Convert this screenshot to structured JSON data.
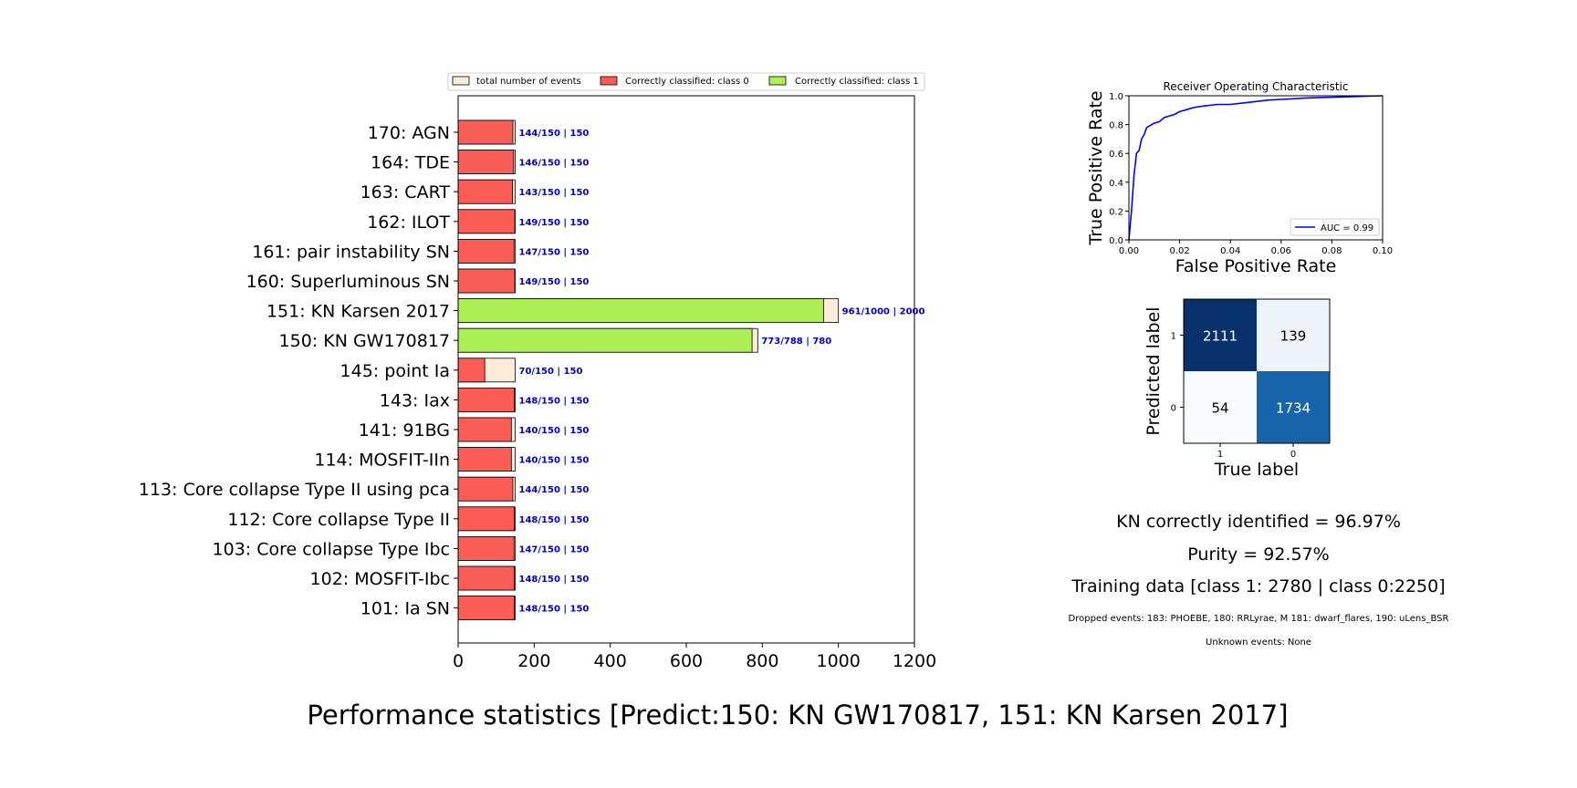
{
  "suptitle": "Performance statistics [Predict:150: KN GW170817, 151: KN Karsen 2017]",
  "legend": {
    "items": [
      {
        "label": "total number of events",
        "color": "#fdebd9"
      },
      {
        "label": "Correctly classified: class 0",
        "color": "#fa5c56"
      },
      {
        "label": "Correctly classified: class 1",
        "color": "#adf056"
      }
    ]
  },
  "roc": {
    "title": "Receiver Operating Characteristic",
    "xlabel": "False Positive Rate",
    "ylabel": "True Positive Rate",
    "legend_label": "AUC = 0.99",
    "line_color": "#0000ff"
  },
  "confusion": {
    "xlabel": "True label",
    "ylabel": "Predicted label",
    "xticks": [
      "1",
      "0"
    ],
    "yticks": [
      "1",
      "0"
    ],
    "cells": [
      [
        {
          "value": "2111",
          "color": "#08306b",
          "text_color": "#ffffff"
        },
        {
          "value": "139",
          "color": "#edf4fc",
          "text_color": "#000000"
        }
      ],
      [
        {
          "value": "54",
          "color": "#f7fbff",
          "text_color": "#000000"
        },
        {
          "value": "1734",
          "color": "#1764ab",
          "text_color": "#ffffff"
        }
      ]
    ]
  },
  "stats": {
    "kn_identified": "KN correctly identified = 96.97%",
    "purity": "Purity = 92.57%",
    "training": "Training data [class 1: 2780 | class 0:2250]",
    "dropped": "Dropped events: 183: PHOEBE, 180: RRLyrae, M 181: dwarf_flares, 190: uLens_BSR",
    "unknown": "Unknown events: None"
  },
  "chart_data": [
    {
      "type": "bar",
      "orientation": "horizontal",
      "xlim": [
        0,
        1200
      ],
      "xticks": [
        0,
        200,
        400,
        600,
        800,
        1000,
        1200
      ],
      "categories": [
        "170: AGN",
        "164: TDE",
        "163: CART",
        "162: ILOT",
        "161: pair instability SN",
        "160: Superluminous SN",
        "151: KN Karsen 2017",
        "150: KN GW170817",
        "145: point Ia",
        "143: Iax",
        "141: 91BG",
        "114: MOSFIT-IIn",
        "113: Core collapse Type II using pca ",
        "112: Core collapse Type II",
        "103: Core collapse Type Ibc",
        "102: MOSFIT-Ibc",
        "101: Ia SN"
      ],
      "series": [
        {
          "name": "total number of events",
          "values": [
            150,
            150,
            150,
            150,
            150,
            150,
            1000,
            788,
            150,
            150,
            150,
            150,
            150,
            150,
            150,
            150,
            150
          ]
        },
        {
          "name": "Correctly classified: class 0",
          "values": [
            144,
            146,
            143,
            149,
            147,
            149,
            0,
            0,
            70,
            148,
            140,
            140,
            144,
            148,
            147,
            148,
            148
          ]
        },
        {
          "name": "Correctly classified: class 1",
          "values": [
            0,
            0,
            0,
            0,
            0,
            0,
            961,
            773,
            0,
            0,
            0,
            0,
            0,
            0,
            0,
            0,
            0
          ]
        }
      ],
      "bar_labels": [
        "144/150 | 150",
        "146/150 | 150",
        "143/150 | 150",
        "149/150 | 150",
        "147/150 | 150",
        "149/150 | 150",
        "961/1000 | 2000",
        "773/788 | 780",
        "70/150 | 150",
        "148/150 | 150",
        "140/150 | 150",
        "140/150 | 150",
        "144/150 | 150",
        "148/150 | 150",
        "147/150 | 150",
        "148/150 | 150",
        "148/150 | 150"
      ]
    },
    {
      "type": "line",
      "title": "Receiver Operating Characteristic",
      "xlabel": "False Positive Rate",
      "ylabel": "True Positive Rate",
      "xlim": [
        0,
        0.1
      ],
      "ylim": [
        0,
        1.0
      ],
      "xticks": [
        "0.00",
        "0.02",
        "0.04",
        "0.06",
        "0.08",
        "0.10"
      ],
      "yticks": [
        "0.0",
        "0.2",
        "0.4",
        "0.6",
        "0.8",
        "1.0"
      ],
      "series": [
        {
          "name": "AUC = 0.99",
          "x": [
            0,
            0.001,
            0.002,
            0.003,
            0.004,
            0.005,
            0.006,
            0.007,
            0.008,
            0.01,
            0.012,
            0.014,
            0.016,
            0.018,
            0.02,
            0.022,
            0.024,
            0.026,
            0.03,
            0.035,
            0.04,
            0.045,
            0.05,
            0.055,
            0.06,
            0.07,
            0.08,
            0.09,
            0.1
          ],
          "y": [
            0,
            0.2,
            0.45,
            0.6,
            0.62,
            0.7,
            0.73,
            0.78,
            0.79,
            0.81,
            0.82,
            0.85,
            0.86,
            0.87,
            0.89,
            0.9,
            0.91,
            0.92,
            0.93,
            0.94,
            0.94,
            0.95,
            0.96,
            0.97,
            0.975,
            0.985,
            0.99,
            0.995,
            1.0
          ]
        }
      ]
    },
    {
      "type": "heatmap",
      "xlabel": "True label",
      "ylabel": "Predicted label",
      "x_categories": [
        "1",
        "0"
      ],
      "y_categories": [
        "1",
        "0"
      ],
      "values": [
        [
          2111,
          139
        ],
        [
          54,
          1734
        ]
      ]
    }
  ]
}
